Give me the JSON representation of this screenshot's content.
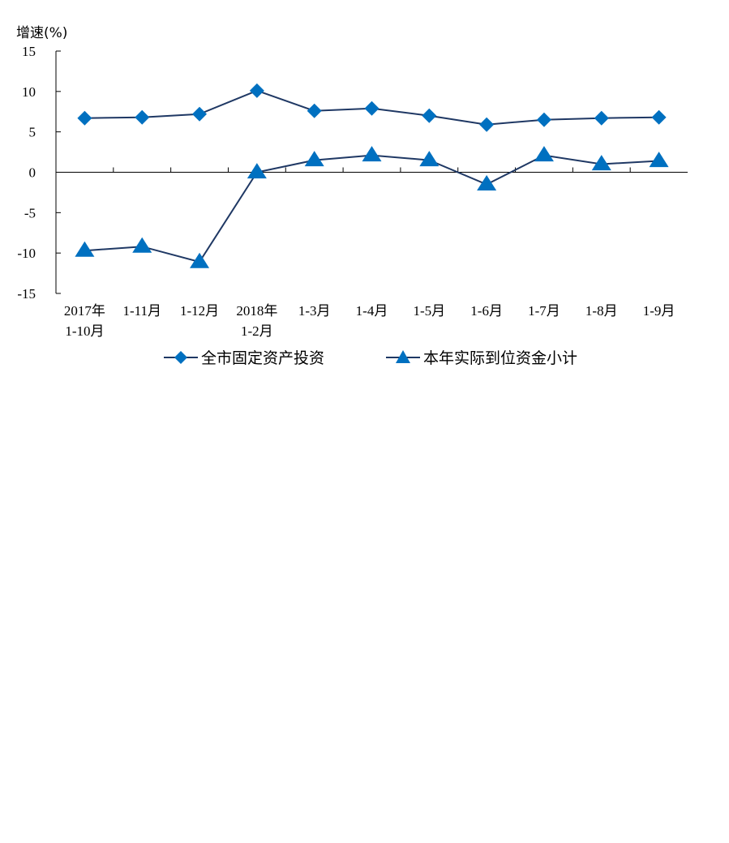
{
  "chart_data": {
    "type": "line",
    "ylabel": "增速(%)",
    "ylim": [
      -15,
      15
    ],
    "yticks": [
      15,
      10,
      5,
      0,
      -5,
      -10,
      -15
    ],
    "categories": [
      [
        "2017年",
        "1-10月"
      ],
      [
        "1-11月"
      ],
      [
        "1-12月"
      ],
      [
        "2018年",
        "1-2月"
      ],
      [
        "1-3月"
      ],
      [
        "1-4月"
      ],
      [
        "1-5月"
      ],
      [
        "1-6月"
      ],
      [
        "1-7月"
      ],
      [
        "1-8月"
      ],
      [
        "1-9月"
      ]
    ],
    "series": [
      {
        "name": "全市固定资产投资",
        "marker": "diamond",
        "line_color": "#1f3864",
        "marker_color": "#0070c0",
        "values": [
          6.7,
          6.8,
          7.2,
          10.1,
          7.6,
          7.9,
          7.0,
          5.9,
          6.5,
          6.7,
          6.8
        ]
      },
      {
        "name": "本年实际到位资金小计",
        "marker": "triangle",
        "line_color": "#1f3864",
        "marker_color": "#0070c0",
        "values": [
          -9.7,
          -9.2,
          -11.1,
          0.0,
          1.5,
          2.1,
          1.5,
          -1.5,
          2.1,
          1.0,
          1.4
        ]
      }
    ],
    "legend_position": "bottom",
    "grid": false
  }
}
